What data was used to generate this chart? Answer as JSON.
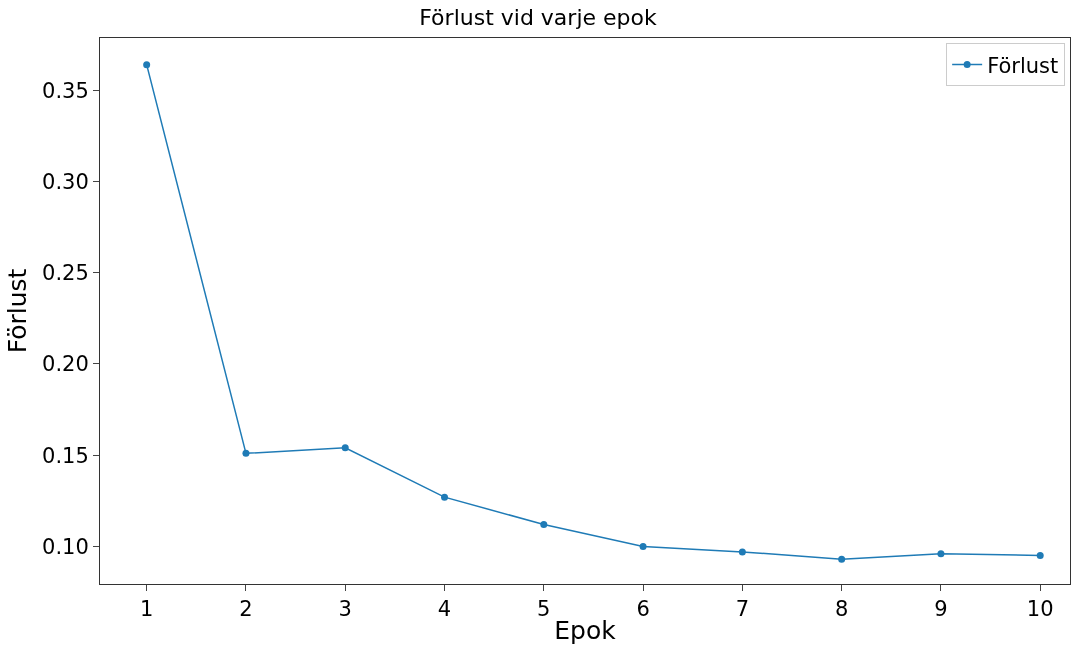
{
  "chart_data": {
    "type": "line",
    "title": "Förlust vid varje epok",
    "xlabel": "Epok",
    "ylabel": "Förlust",
    "x": [
      1,
      2,
      3,
      4,
      5,
      6,
      7,
      8,
      9,
      10
    ],
    "series": [
      {
        "name": "Förlust",
        "color": "#1f7bb6",
        "values": [
          0.364,
          0.151,
          0.154,
          0.127,
          0.112,
          0.1,
          0.097,
          0.093,
          0.096,
          0.095
        ]
      }
    ],
    "xlim": [
      0.53,
      10.3
    ],
    "xticks": [
      1,
      2,
      3,
      4,
      5,
      6,
      7,
      8,
      9,
      10
    ],
    "ylim": [
      0.0794,
      0.3786
    ],
    "yticks": [
      {
        "value": 0.1,
        "label": "0.10"
      },
      {
        "value": 0.15,
        "label": "0.15"
      },
      {
        "value": 0.2,
        "label": "0.20"
      },
      {
        "value": 0.25,
        "label": "0.25"
      },
      {
        "value": 0.3,
        "label": "0.30"
      },
      {
        "value": 0.35,
        "label": "0.35"
      }
    ],
    "legend": "top right",
    "marker": "circle",
    "line_style": "solid",
    "grid": false
  }
}
